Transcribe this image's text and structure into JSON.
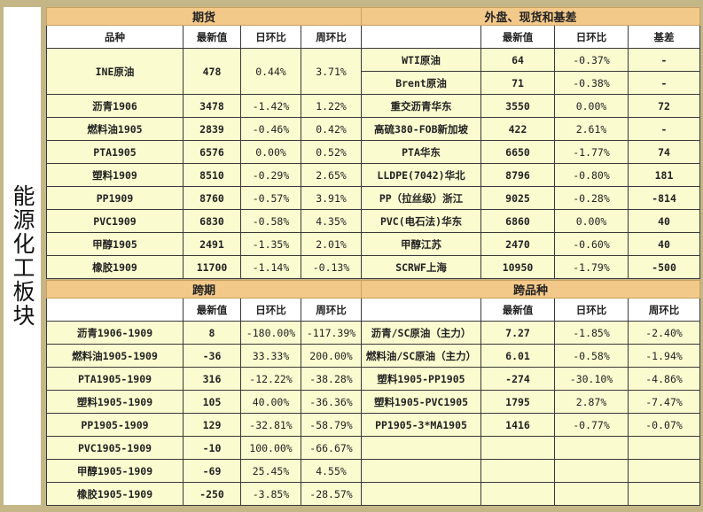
{
  "side_label": "能源化工板块",
  "top": {
    "left_title": "期货",
    "right_title": "外盘、现货和基差",
    "left_headers": [
      "品种",
      "最新值",
      "日环比",
      "周环比"
    ],
    "right_headers": [
      "",
      "最新值",
      "日环比",
      "基差"
    ],
    "rows": [
      {
        "l": [
          "INE原油",
          "478",
          "0.44%",
          "3.71%"
        ],
        "r": [
          "WTI原油",
          "64",
          "-0.37%",
          "-"
        ]
      },
      {
        "l": [
          "",
          "",
          "",
          ""
        ],
        "r": [
          "Brent原油",
          "71",
          "-0.38%",
          "-"
        ]
      },
      {
        "l": [
          "沥青1906",
          "3478",
          "-1.42%",
          "1.22%"
        ],
        "r": [
          "重交沥青华东",
          "3550",
          "0.00%",
          "72"
        ]
      },
      {
        "l": [
          "燃料油1905",
          "2839",
          "-0.46%",
          "0.42%"
        ],
        "r": [
          "高硫380-FOB新加坡",
          "422",
          "2.61%",
          "-"
        ]
      },
      {
        "l": [
          "PTA1905",
          "6576",
          "0.00%",
          "0.52%"
        ],
        "r": [
          "PTA华东",
          "6650",
          "-1.77%",
          "74"
        ]
      },
      {
        "l": [
          "塑料1909",
          "8510",
          "-0.29%",
          "2.65%"
        ],
        "r": [
          "LLDPE(7042)华北",
          "8796",
          "-0.80%",
          "181"
        ]
      },
      {
        "l": [
          "PP1909",
          "8760",
          "-0.57%",
          "3.91%"
        ],
        "r": [
          "PP（拉丝级）浙江",
          "9025",
          "-0.28%",
          "-814"
        ]
      },
      {
        "l": [
          "PVC1909",
          "6830",
          "-0.58%",
          "4.35%"
        ],
        "r": [
          "PVC(电石法)华东",
          "6860",
          "0.00%",
          "40"
        ]
      },
      {
        "l": [
          "甲醇1905",
          "2491",
          "-1.35%",
          "2.01%"
        ],
        "r": [
          "甲醇江苏",
          "2470",
          "-0.60%",
          "40"
        ]
      },
      {
        "l": [
          "橡胶1909",
          "11700",
          "-1.14%",
          "-0.13%"
        ],
        "r": [
          "SCRWF上海",
          "10950",
          "-1.79%",
          "-500"
        ]
      }
    ]
  },
  "bottom": {
    "left_title": "跨期",
    "right_title": "跨品种",
    "left_headers": [
      "",
      "最新值",
      "日环比",
      "周环比"
    ],
    "right_headers": [
      "",
      "最新值",
      "日环比",
      "周环比"
    ],
    "rows": [
      {
        "l": [
          "沥青1906-1909",
          "8",
          "-180.00%",
          "-117.39%"
        ],
        "r": [
          "沥青/SC原油（主力）",
          "7.27",
          "-1.85%",
          "-2.40%"
        ]
      },
      {
        "l": [
          "燃料油1905-1909",
          "-36",
          "33.33%",
          "200.00%"
        ],
        "r": [
          "燃料油/SC原油（主力）",
          "6.01",
          "-0.58%",
          "-1.94%"
        ]
      },
      {
        "l": [
          "PTA1905-1909",
          "316",
          "-12.22%",
          "-38.28%"
        ],
        "r": [
          "塑料1905-PP1905",
          "-274",
          "-30.10%",
          "-4.86%"
        ]
      },
      {
        "l": [
          "塑料1905-1909",
          "105",
          "40.00%",
          "-36.36%"
        ],
        "r": [
          "塑料1905-PVC1905",
          "1795",
          "2.87%",
          "-7.47%"
        ]
      },
      {
        "l": [
          "PP1905-1909",
          "129",
          "-32.81%",
          "-58.79%"
        ],
        "r": [
          "PP1905-3*MA1905",
          "1416",
          "-0.77%",
          "-0.07%"
        ]
      },
      {
        "l": [
          "PVC1905-1909",
          "-10",
          "100.00%",
          "-66.67%"
        ],
        "r": [
          "",
          "",
          "",
          ""
        ]
      },
      {
        "l": [
          "甲醇1905-1909",
          "-69",
          "25.45%",
          "4.55%"
        ],
        "r": [
          "",
          "",
          "",
          ""
        ]
      },
      {
        "l": [
          "橡胶1905-1909",
          "-250",
          "-3.85%",
          "-28.57%"
        ],
        "r": [
          "",
          "",
          "",
          ""
        ]
      }
    ]
  },
  "colors": {
    "up": "#e02020",
    "down": "#2aa55a",
    "header_bar": "#f3c98a",
    "cell": "#fbfbd0"
  }
}
